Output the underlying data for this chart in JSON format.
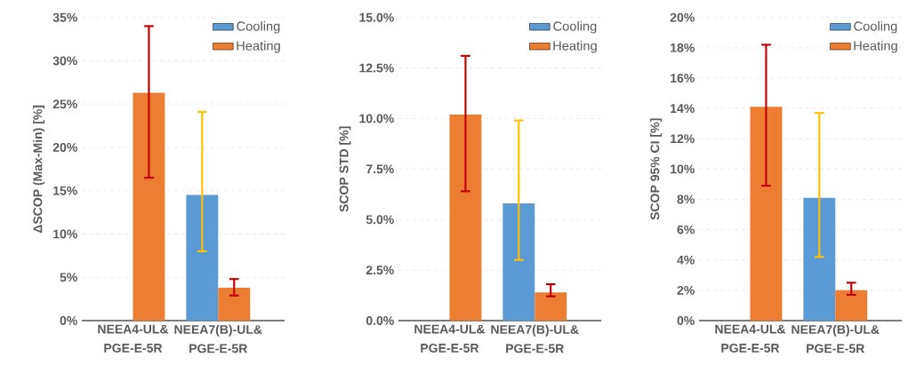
{
  "chart_data": [
    {
      "type": "bar",
      "ylabel": "ΔSCOP (Max-Min) [%]",
      "categories": [
        "NEEA4-UL& PGE-E-5R",
        "NEEA7(B)-UL& PGE-E-5R"
      ],
      "series": [
        {
          "name": "Cooling",
          "color": "#5b9bd5",
          "values": [
            null,
            14.5
          ],
          "errors": [
            null,
            [
              8.0,
              24.1
            ]
          ]
        },
        {
          "name": "Heating",
          "color": "#ed7d31",
          "values": [
            26.3,
            3.8
          ],
          "errors": [
            [
              16.5,
              34.0
            ],
            [
              2.9,
              4.8
            ]
          ]
        }
      ],
      "ylim": [
        0,
        35
      ],
      "yticks": [
        {
          "value": 0,
          "label": "0%"
        },
        {
          "value": 5,
          "label": "5%"
        },
        {
          "value": 10,
          "label": "10%"
        },
        {
          "value": 15,
          "label": "15%"
        },
        {
          "value": 20,
          "label": "20%"
        },
        {
          "value": 25,
          "label": "25%"
        },
        {
          "value": 30,
          "label": "30%"
        },
        {
          "value": 35,
          "label": "35%"
        }
      ],
      "grid": "y",
      "legend": "top right"
    },
    {
      "type": "bar",
      "ylabel": "SCOP STD [%]",
      "categories": [
        "NEEA4-UL& PGE-E-5R",
        "NEEA7(B)-UL& PGE-E-5R"
      ],
      "series": [
        {
          "name": "Cooling",
          "color": "#5b9bd5",
          "values": [
            null,
            5.8
          ],
          "errors": [
            null,
            [
              3.0,
              9.9
            ]
          ]
        },
        {
          "name": "Heating",
          "color": "#ed7d31",
          "values": [
            10.2,
            1.4
          ],
          "errors": [
            [
              6.4,
              13.1
            ],
            [
              1.2,
              1.8
            ]
          ]
        }
      ],
      "ylim": [
        0,
        15
      ],
      "yticks": [
        {
          "value": 0,
          "label": "0.0%"
        },
        {
          "value": 2.5,
          "label": "2.5%"
        },
        {
          "value": 5,
          "label": "5.0%"
        },
        {
          "value": 7.5,
          "label": "7.5%"
        },
        {
          "value": 10,
          "label": "10.0%"
        },
        {
          "value": 12.5,
          "label": "12.5%"
        },
        {
          "value": 15,
          "label": "15.0%"
        }
      ],
      "grid": "y",
      "legend": "top right"
    },
    {
      "type": "bar",
      "ylabel": "SCOP 95% CI [%]",
      "categories": [
        "NEEA4-UL& PGE-E-5R",
        "NEEA7(B)-UL& PGE-E-5R"
      ],
      "series": [
        {
          "name": "Cooling",
          "color": "#5b9bd5",
          "values": [
            null,
            8.1
          ],
          "errors": [
            null,
            [
              4.2,
              13.7
            ]
          ]
        },
        {
          "name": "Heating",
          "color": "#ed7d31",
          "values": [
            14.1,
            2.0
          ],
          "errors": [
            [
              8.9,
              18.2
            ],
            [
              1.7,
              2.5
            ]
          ]
        }
      ],
      "ylim": [
        0,
        20
      ],
      "yticks": [
        {
          "value": 0,
          "label": "0%"
        },
        {
          "value": 2,
          "label": "2%"
        },
        {
          "value": 4,
          "label": "4%"
        },
        {
          "value": 6,
          "label": "6%"
        },
        {
          "value": 8,
          "label": "8%"
        },
        {
          "value": 10,
          "label": "10%"
        },
        {
          "value": 12,
          "label": "12%"
        },
        {
          "value": 14,
          "label": "14%"
        },
        {
          "value": 16,
          "label": "16%"
        },
        {
          "value": 18,
          "label": "18%"
        },
        {
          "value": 20,
          "label": "20%"
        }
      ],
      "grid": "y",
      "legend": "top right"
    }
  ]
}
